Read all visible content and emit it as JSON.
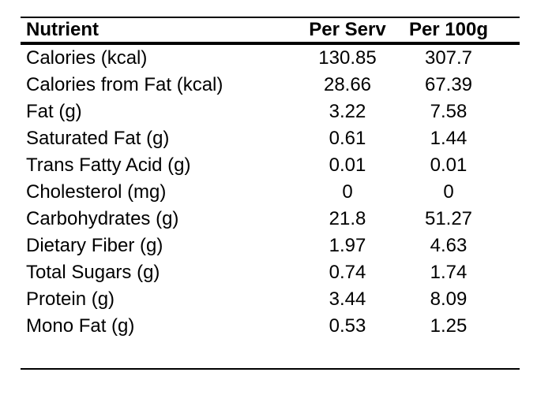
{
  "chart_data": {
    "type": "table",
    "columns": [
      "Nutrient",
      "Per Serv",
      "Per 100g"
    ],
    "rows": [
      {
        "name": "Calories (kcal)",
        "per_serv": "130.85",
        "per_100g": "307.7"
      },
      {
        "name": "Calories from Fat (kcal)",
        "per_serv": "28.66",
        "per_100g": "67.39"
      },
      {
        "name": "Fat (g)",
        "per_serv": "3.22",
        "per_100g": "7.58"
      },
      {
        "name": "Saturated Fat (g)",
        "per_serv": "0.61",
        "per_100g": "1.44"
      },
      {
        "name": "Trans Fatty Acid (g)",
        "per_serv": "0.01",
        "per_100g": "0.01"
      },
      {
        "name": "Cholesterol (mg)",
        "per_serv": "0",
        "per_100g": "0"
      },
      {
        "name": "Carbohydrates (g)",
        "per_serv": "21.8",
        "per_100g": "51.27"
      },
      {
        "name": "Dietary Fiber (g)",
        "per_serv": "1.97",
        "per_100g": "4.63"
      },
      {
        "name": "Total Sugars (g)",
        "per_serv": "0.74",
        "per_100g": "1.74"
      },
      {
        "name": "Protein (g)",
        "per_serv": "3.44",
        "per_100g": "8.09"
      },
      {
        "name": "Mono Fat (g)",
        "per_serv": "0.53",
        "per_100g": "1.25"
      }
    ],
    "colors": {
      "text": "#000000",
      "background": "#ffffff",
      "rule": "#000000"
    }
  }
}
